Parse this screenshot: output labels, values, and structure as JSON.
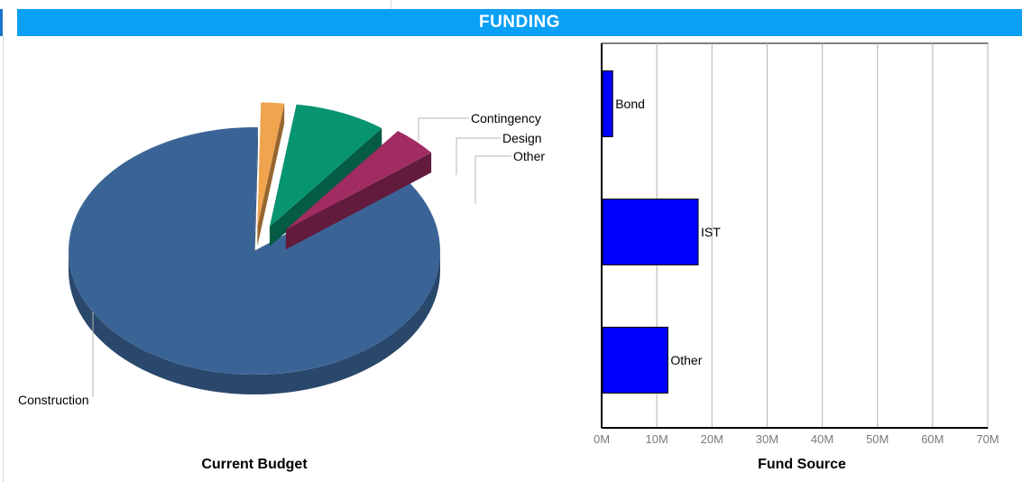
{
  "header": {
    "title": "FUNDING"
  },
  "colors": {
    "header_bg": "#0aa0f5",
    "construction": "#3b6496",
    "contingency": "#f0a44e",
    "design": "#079470",
    "other_pie": "#a02c62",
    "bar_fill": "#0000ff"
  },
  "chart_data": [
    {
      "type": "pie",
      "title": "Current Budget",
      "slices": [
        {
          "label": "Construction",
          "value": 86.0
        },
        {
          "label": "Contingency",
          "value": 2.0
        },
        {
          "label": "Design",
          "value": 8.0
        },
        {
          "label": "Other",
          "value": 4.0
        }
      ]
    },
    {
      "type": "bar",
      "orientation": "horizontal",
      "title": "Fund Source",
      "categories": [
        "Bond",
        "IST",
        "Other"
      ],
      "values": [
        2,
        17.5,
        12
      ],
      "unit": "M",
      "xlim": [
        0,
        70
      ],
      "xticks": [
        "0M",
        "10M",
        "20M",
        "30M",
        "40M",
        "50M",
        "60M",
        "70M"
      ],
      "grid": true
    }
  ]
}
